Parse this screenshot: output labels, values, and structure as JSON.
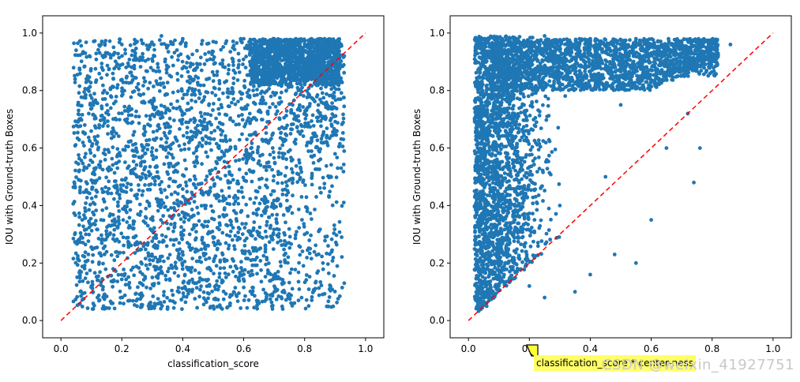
{
  "chart_data": [
    {
      "type": "scatter",
      "title": "",
      "xlabel": "classification_score",
      "ylabel": "IOU with Ground-truth Boxes",
      "xlim": [
        -0.06,
        1.06
      ],
      "ylim": [
        -0.06,
        1.06
      ],
      "xticks": [
        "0.0",
        "0.2",
        "0.4",
        "0.6",
        "0.8",
        "1.0"
      ],
      "yticks": [
        "0.0",
        "0.2",
        "0.4",
        "0.6",
        "0.8",
        "1.0"
      ],
      "grid": false,
      "reference_line": {
        "x": [
          0,
          1
        ],
        "y": [
          0,
          1
        ],
        "style": "dashed",
        "color": "#ff0000"
      },
      "series": [
        {
          "color": "#1f77b4",
          "distribution": "dense uniform cloud, x 0.04-0.93, y 0.04-0.99, densest near (0.85, 0.93)",
          "points": [
            [
              0.05,
              0.94
            ],
            [
              0.08,
              0.93
            ],
            [
              0.06,
              0.7
            ],
            [
              0.05,
              0.55
            ],
            [
              0.07,
              0.35
            ],
            [
              0.09,
              0.23
            ],
            [
              0.1,
              0.12
            ],
            [
              0.12,
              0.08
            ],
            [
              0.14,
              0.05
            ],
            [
              0.17,
              0.06
            ],
            [
              0.2,
              0.96
            ],
            [
              0.25,
              0.97
            ],
            [
              0.33,
              0.99
            ],
            [
              0.4,
              0.98
            ],
            [
              0.5,
              0.97
            ],
            [
              0.6,
              0.98
            ],
            [
              0.7,
              0.98
            ],
            [
              0.85,
              0.98
            ],
            [
              0.92,
              0.96
            ],
            [
              0.93,
              0.92
            ],
            [
              0.92,
              0.53
            ],
            [
              0.9,
              0.58
            ],
            [
              0.88,
              0.43
            ],
            [
              0.86,
              0.2
            ],
            [
              0.93,
              0.13
            ],
            [
              0.78,
              0.07
            ],
            [
              0.65,
              0.06
            ],
            [
              0.5,
              0.05
            ],
            [
              0.35,
              0.04
            ],
            [
              0.25,
              0.05
            ],
            [
              0.15,
              0.3
            ],
            [
              0.2,
              0.45
            ],
            [
              0.3,
              0.6
            ],
            [
              0.42,
              0.35
            ],
            [
              0.55,
              0.25
            ],
            [
              0.62,
              0.72
            ],
            [
              0.45,
              0.82
            ],
            [
              0.3,
              0.15
            ],
            [
              0.7,
              0.45
            ],
            [
              0.8,
              0.3
            ]
          ]
        }
      ]
    },
    {
      "type": "scatter",
      "title": "",
      "xlabel": "classification_score * center-ness",
      "ylabel": "IOU with Ground-truth Boxes",
      "xlim": [
        -0.06,
        1.06
      ],
      "ylim": [
        -0.06,
        1.06
      ],
      "xticks": [
        "0.0",
        "0.2",
        "0.4",
        "0.6",
        "0.8",
        "1.0"
      ],
      "yticks": [
        "0.0",
        "0.2",
        "0.4",
        "0.6",
        "0.8",
        "1.0"
      ],
      "grid": false,
      "reference_line": {
        "x": [
          0,
          1
        ],
        "y": [
          0,
          1
        ],
        "style": "dashed",
        "color": "#ff0000"
      },
      "series": [
        {
          "color": "#1f77b4",
          "distribution": "triangular cloud mostly above diagonal, x 0.02-0.86, y 0.03-0.99, densest near (0.25, 0.9)",
          "points": [
            [
              0.03,
              0.6
            ],
            [
              0.02,
              0.45
            ],
            [
              0.04,
              0.25
            ],
            [
              0.05,
              0.1
            ],
            [
              0.06,
              0.05
            ],
            [
              0.07,
              0.93
            ],
            [
              0.1,
              0.95
            ],
            [
              0.2,
              0.97
            ],
            [
              0.25,
              0.99
            ],
            [
              0.4,
              0.98
            ],
            [
              0.55,
              0.98
            ],
            [
              0.7,
              0.97
            ],
            [
              0.8,
              0.95
            ],
            [
              0.86,
              0.96
            ],
            [
              0.75,
              0.87
            ],
            [
              0.76,
              0.6
            ],
            [
              0.74,
              0.48
            ],
            [
              0.72,
              0.72
            ],
            [
              0.65,
              0.6
            ],
            [
              0.6,
              0.35
            ],
            [
              0.55,
              0.2
            ],
            [
              0.48,
              0.23
            ],
            [
              0.4,
              0.16
            ],
            [
              0.35,
              0.1
            ],
            [
              0.25,
              0.08
            ],
            [
              0.2,
              0.12
            ],
            [
              0.15,
              0.2
            ],
            [
              0.45,
              0.5
            ],
            [
              0.3,
              0.4
            ],
            [
              0.5,
              0.75
            ]
          ]
        }
      ]
    }
  ],
  "overlay": {
    "tooltip_text": "classification_score * center-ness",
    "watermark_text": "CSDN @weixin_41927751"
  }
}
